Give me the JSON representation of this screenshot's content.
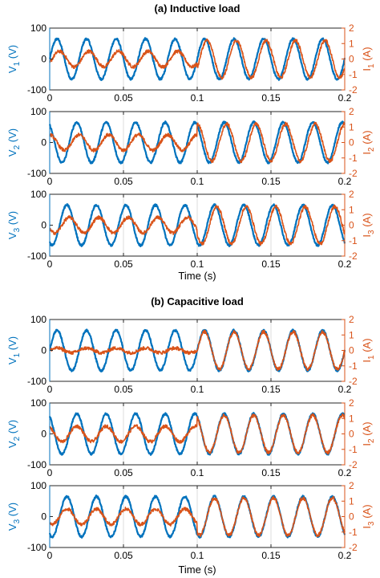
{
  "chart_data": [
    {
      "type": "line",
      "title": "(a) Inductive load",
      "xlabel": "Time (s)",
      "xlim": [
        0,
        0.2
      ],
      "x_ticks": [
        "0",
        "0.05",
        "0.1",
        "0.15",
        "0.2"
      ],
      "y_left_ticks": [
        "100",
        "0",
        "-100"
      ],
      "y_right_ticks": [
        "2",
        "1",
        "0",
        "-1",
        "-2"
      ],
      "ylim_left": [
        -100,
        100
      ],
      "ylim_right": [
        -2,
        2
      ],
      "grid": "vertical",
      "panels": [
        {
          "ylabel_left": "V_1 (V)",
          "ylabel_right": "I_1 (A)",
          "series": [
            {
              "name": "V_1",
              "axis": "left",
              "freq_hz": 50,
              "amplitude": 65,
              "phase_deg": 0
            },
            {
              "name": "I_1",
              "axis": "right",
              "freq_hz": 50,
              "amplitude_before": 0.5,
              "amplitude_after": 1.2,
              "step_time": 0.1,
              "phase_deg": -30
            }
          ]
        },
        {
          "ylabel_left": "V_2 (V)",
          "ylabel_right": "I_2 (A)",
          "series": [
            {
              "name": "V_2",
              "axis": "left",
              "freq_hz": 50,
              "amplitude": 65,
              "phase_deg": 120
            },
            {
              "name": "I_2",
              "axis": "right",
              "freq_hz": 50,
              "amplitude_before": 0.5,
              "amplitude_after": 1.2,
              "step_time": 0.1,
              "phase_deg": 90
            }
          ]
        },
        {
          "ylabel_left": "V_3 (V)",
          "ylabel_right": "I_3 (A)",
          "series": [
            {
              "name": "V_3",
              "axis": "left",
              "freq_hz": 50,
              "amplitude": 65,
              "phase_deg": -120
            },
            {
              "name": "I_3",
              "axis": "right",
              "freq_hz": 50,
              "amplitude_before": 0.5,
              "amplitude_after": 1.2,
              "step_time": 0.1,
              "phase_deg": -150
            }
          ]
        }
      ]
    },
    {
      "type": "line",
      "title": "(b) Capacitive load",
      "xlabel": "Time (s)",
      "xlim": [
        0,
        0.2
      ],
      "x_ticks": [
        "0",
        "0.05",
        "0.1",
        "0.15",
        "0.2"
      ],
      "y_left_ticks": [
        "100",
        "0",
        "-100"
      ],
      "y_right_ticks": [
        "2",
        "1",
        "0",
        "-1",
        "-2"
      ],
      "ylim_left": [
        -100,
        100
      ],
      "ylim_right": [
        -2,
        2
      ],
      "grid": "vertical",
      "panels": [
        {
          "ylabel_left": "V_1 (V)",
          "ylabel_right": "I_1 (A)",
          "series": [
            {
              "name": "V_1",
              "axis": "left",
              "freq_hz": 50,
              "amplitude": 65,
              "phase_deg": 0
            },
            {
              "name": "I_1",
              "axis": "right",
              "freq_hz": 50,
              "amplitude_before": 0.15,
              "amplitude_after": 1.2,
              "step_time": 0.1,
              "phase_deg": 0
            }
          ]
        },
        {
          "ylabel_left": "V_2 (V)",
          "ylabel_right": "I_2 (A)",
          "series": [
            {
              "name": "V_2",
              "axis": "left",
              "freq_hz": 50,
              "amplitude": 65,
              "phase_deg": 120
            },
            {
              "name": "I_2",
              "axis": "right",
              "freq_hz": 50,
              "amplitude_before": 0.5,
              "amplitude_after": 1.2,
              "step_time": 0.1,
              "phase_deg": 120
            }
          ]
        },
        {
          "ylabel_left": "V_3 (V)",
          "ylabel_right": "I_3 (A)",
          "series": [
            {
              "name": "V_3",
              "axis": "left",
              "freq_hz": 50,
              "amplitude": 65,
              "phase_deg": -120
            },
            {
              "name": "I_3",
              "axis": "right",
              "freq_hz": 50,
              "amplitude_before": 0.5,
              "amplitude_after": 1.2,
              "step_time": 0.1,
              "phase_deg": -120
            }
          ]
        }
      ]
    }
  ],
  "colors": {
    "voltage": "#0072bd",
    "current": "#d95319",
    "axis": "#262626",
    "grid": "#dcdcdc"
  }
}
